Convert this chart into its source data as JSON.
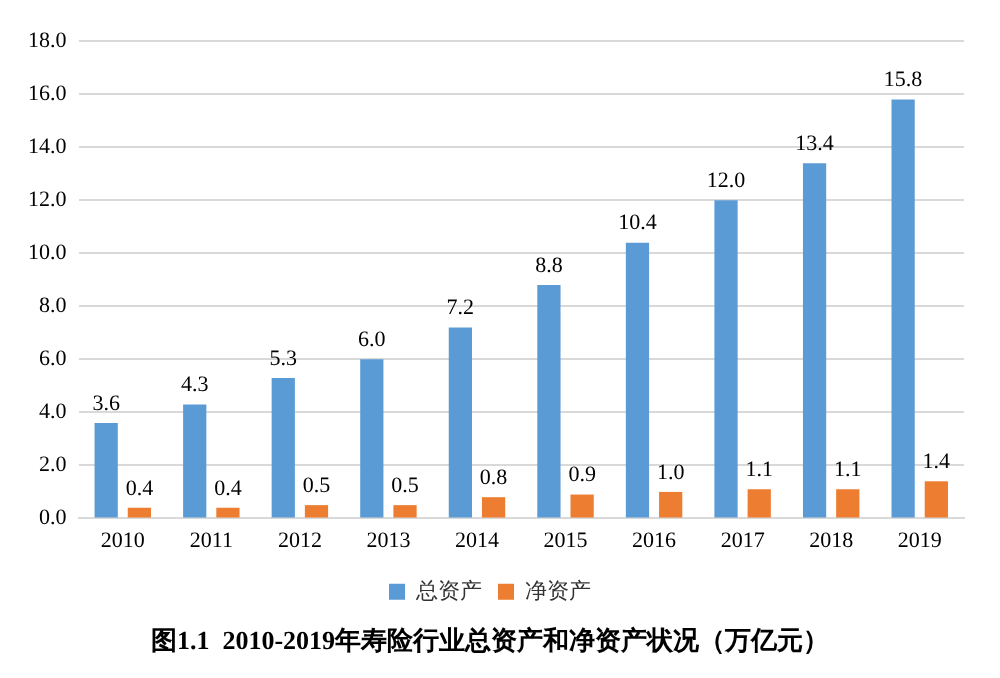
{
  "chart_data": {
    "type": "bar",
    "title": "图1.1  2010-2019年寿险行业总资产和净资产状况（万亿元）",
    "categories": [
      "2010",
      "2011",
      "2012",
      "2013",
      "2014",
      "2015",
      "2016",
      "2017",
      "2018",
      "2019"
    ],
    "series": [
      {
        "name": "总资产",
        "color": "#5b9bd5",
        "values": [
          3.6,
          4.3,
          5.3,
          6.0,
          7.2,
          8.8,
          10.4,
          12.0,
          13.4,
          15.8
        ],
        "value_labels": [
          "3.6",
          "4.3",
          "5.3",
          "6.0",
          "7.2",
          "8.8",
          "10.4",
          "12.0",
          "13.4",
          "15.8"
        ]
      },
      {
        "name": "净资产",
        "color": "#ed7d31",
        "values": [
          0.4,
          0.4,
          0.5,
          0.5,
          0.8,
          0.9,
          1.0,
          1.1,
          1.1,
          1.4
        ],
        "value_labels": [
          "0.4",
          "0.4",
          "0.5",
          "0.5",
          "0.8",
          "0.9",
          "1.0",
          "1.1",
          "1.1",
          "1.4"
        ]
      }
    ],
    "ylim": [
      0,
      18
    ],
    "yticks": [
      {
        "value": 0,
        "label": "0.0"
      },
      {
        "value": 2,
        "label": "2.0"
      },
      {
        "value": 4,
        "label": "4.0"
      },
      {
        "value": 6,
        "label": "6.0"
      },
      {
        "value": 8,
        "label": "8.0"
      },
      {
        "value": 10,
        "label": "10.0"
      },
      {
        "value": 12,
        "label": "12.0"
      },
      {
        "value": 14,
        "label": "14.0"
      },
      {
        "value": 16,
        "label": "16.0"
      },
      {
        "value": 18,
        "label": "18.0"
      }
    ],
    "grid": "y",
    "legend": "bottom"
  }
}
